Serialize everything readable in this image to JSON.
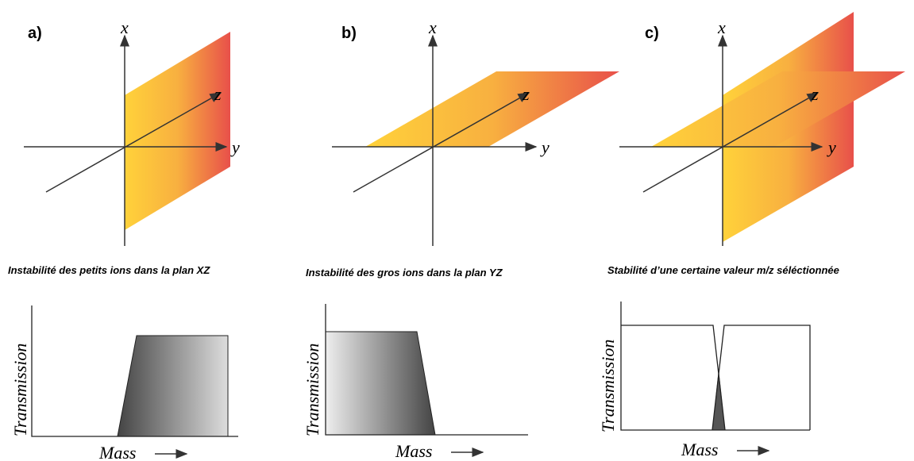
{
  "panels": [
    {
      "label": "a)",
      "axes": {
        "x": "x",
        "y": "y",
        "z": "z"
      },
      "caption": "Instabilité des petits ions dans la plan XZ",
      "plot": {
        "y_label": "Transmission",
        "x_label": "Mass"
      }
    },
    {
      "label": "b)",
      "axes": {
        "x": "x",
        "y": "y",
        "z": "z"
      },
      "caption": "Instabilité des gros ions dans la plan YZ",
      "plot": {
        "y_label": "Transmission",
        "x_label": "Mass"
      }
    },
    {
      "label": "c)",
      "axes": {
        "x": "x",
        "y": "y",
        "z": "z"
      },
      "caption": "Stabilité d’une certaine valeur m/z séléctionnée",
      "plot": {
        "y_label": "Transmission",
        "x_label": "Mass"
      }
    }
  ]
}
